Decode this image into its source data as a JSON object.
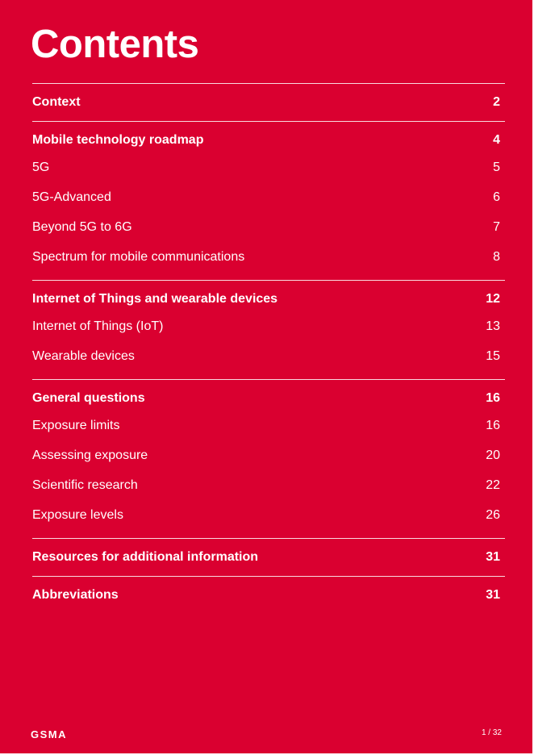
{
  "page": {
    "title": "Contents",
    "page_indicator": "1 / 32"
  },
  "brand": {
    "logo_text": "GSMA",
    "color": "#DA0030"
  },
  "toc": [
    {
      "title": "Context",
      "page": "2",
      "items": []
    },
    {
      "title": "Mobile technology roadmap",
      "page": "4",
      "items": [
        {
          "label": "5G",
          "page": "5"
        },
        {
          "label": "5G-Advanced",
          "page": "6"
        },
        {
          "label": "Beyond 5G to 6G",
          "page": "7"
        },
        {
          "label": "Spectrum for mobile communications",
          "page": "8"
        }
      ]
    },
    {
      "title": "Internet of Things and wearable devices",
      "page": "12",
      "items": [
        {
          "label": "Internet of Things (IoT)",
          "page": "13"
        },
        {
          "label": "Wearable devices",
          "page": "15"
        }
      ]
    },
    {
      "title": "General questions",
      "page": "16",
      "items": [
        {
          "label": "Exposure limits",
          "page": "16"
        },
        {
          "label": "Assessing exposure",
          "page": "20"
        },
        {
          "label": "Scientific research",
          "page": "22"
        },
        {
          "label": "Exposure levels",
          "page": "26"
        }
      ]
    },
    {
      "title": "Resources for additional information",
      "page": "31",
      "items": []
    },
    {
      "title": "Abbreviations",
      "page": "31",
      "items": []
    }
  ]
}
